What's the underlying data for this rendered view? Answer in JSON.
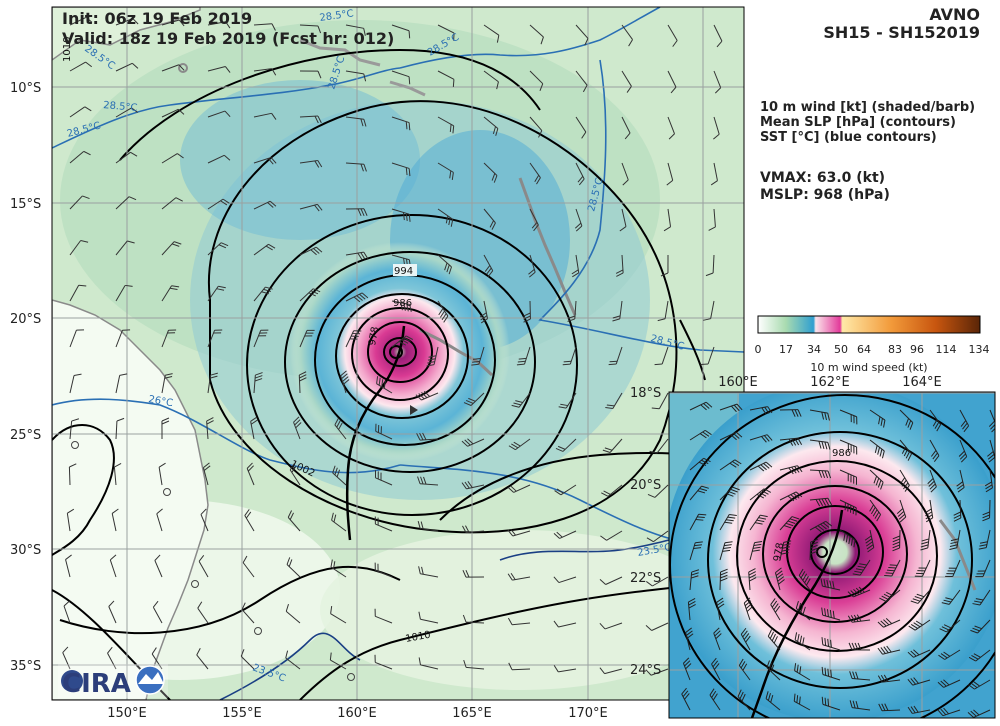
{
  "header": {
    "init": "Init:   06z 19 Feb 2019",
    "valid": "Valid: 18z 19 Feb 2019 (Fcst hr: 012)",
    "model": "AVNO",
    "storm": "SH15 - SH152019"
  },
  "legend": {
    "line1": "10 m wind [kt] (shaded/barb)",
    "line2": "Mean SLP [hPa] (contours)",
    "line3": "SST [°C] (blue contours)",
    "vmax": "VMAX:  63.0 (kt)",
    "mslp": "MSLP:  968 (hPa)"
  },
  "colorbar": {
    "ticks": [
      "0",
      "17",
      "34",
      "50",
      "64",
      "83",
      "96",
      "114",
      "134"
    ],
    "label": "10 m wind speed (kt)",
    "colors": [
      "#ffffff",
      "#3ba5d0",
      "#e23b97",
      "#ffd36e",
      "#e8731c",
      "#5a2507"
    ]
  },
  "main_map": {
    "lat_ticks": [
      "10°S",
      "15°S",
      "20°S",
      "25°S",
      "30°S",
      "35°S"
    ],
    "lon_ticks": [
      "150°E",
      "155°E",
      "160°E",
      "165°E",
      "170°E"
    ],
    "pressure_labels": [
      "994",
      "986",
      "978",
      "1002",
      "1010",
      "1010"
    ],
    "sst_labels": [
      "28.5°C",
      "28.5°C",
      "28.5°C",
      "28.5°C",
      "28.5°C",
      "28.5°C",
      "28.5°C",
      "28.5°C",
      "26°C",
      "23.5°C",
      "23.5°C"
    ],
    "logo": "CIRA"
  },
  "inset_map": {
    "lat_ticks": [
      "18°S",
      "20°S",
      "22°S",
      "24°S"
    ],
    "lon_ticks": [
      "160°E",
      "162°E",
      "164°E"
    ],
    "pressure_labels": [
      "986",
      "978"
    ]
  }
}
